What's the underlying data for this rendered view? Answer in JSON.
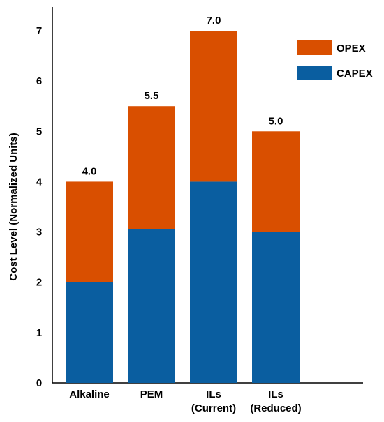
{
  "chart_data": {
    "type": "bar",
    "stacked": true,
    "categories": [
      "Alkaline",
      "PEM",
      "ILs\n(Current)",
      "ILs\n(Reduced)"
    ],
    "series": [
      {
        "name": "CAPEX",
        "values": [
          2.0,
          3.05,
          4.0,
          3.0
        ],
        "color": "#0a5ea0"
      },
      {
        "name": "OPEX",
        "values": [
          2.0,
          2.45,
          3.0,
          2.0
        ],
        "color": "#d94f00"
      }
    ],
    "totals_labels": [
      "4.0",
      "5.5",
      "7.0",
      "5.0"
    ],
    "title": "",
    "xlabel": "",
    "ylabel": "Cost Level (Normalized Units)",
    "ylim": [
      0,
      7
    ],
    "yticks": [
      "0",
      "1",
      "2",
      "3",
      "4",
      "5",
      "6",
      "7"
    ],
    "legend_position": "top-right",
    "grid": false
  }
}
